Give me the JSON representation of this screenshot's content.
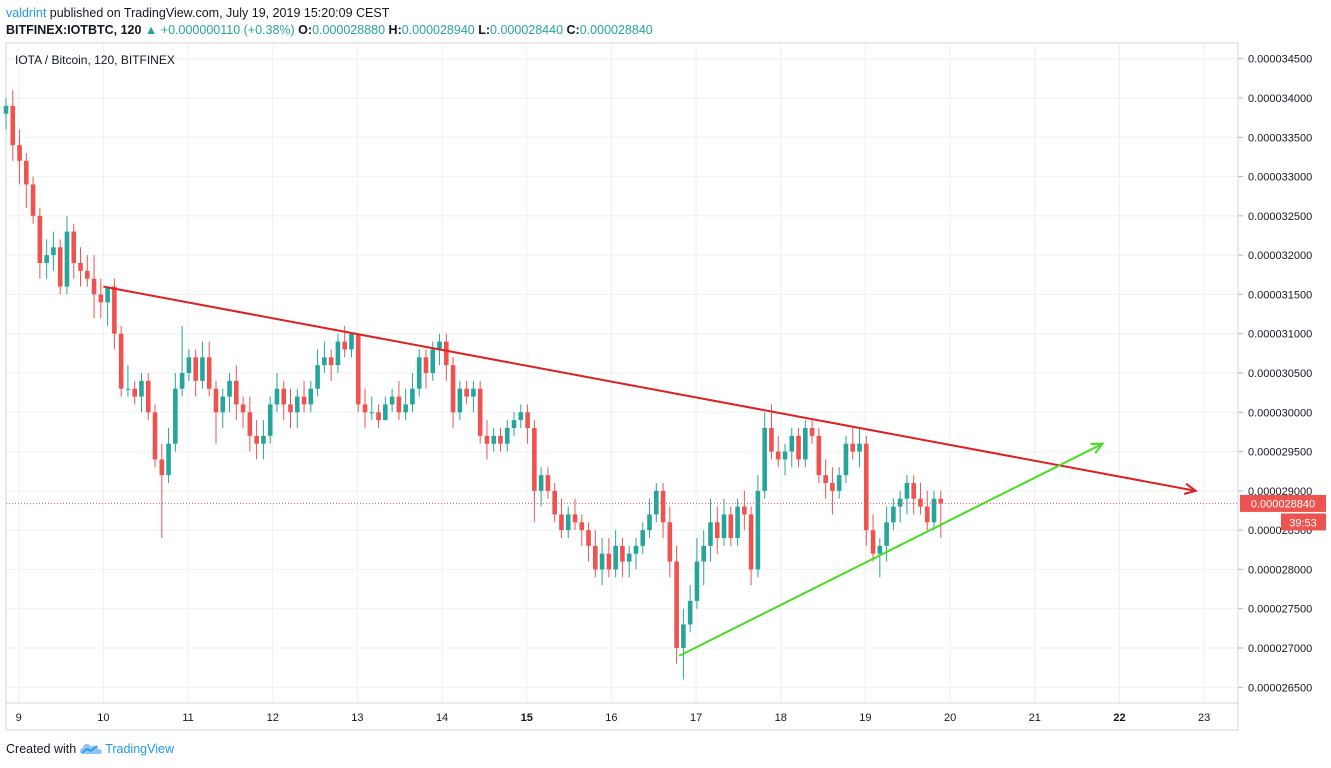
{
  "header": {
    "author": "valdrint",
    "published": " published on TradingView.com, July 19, 2019 15:20:09 CEST",
    "symbol_line": "BITFINEX:IOTBTC, 120",
    "change": "+0.000000110 (+0.38%)",
    "o_label": "O:",
    "o_value": "0.000028880",
    "h_label": "H:",
    "h_value": "0.000028940",
    "l_label": "L:",
    "l_value": "0.000028440",
    "c_label": "C:",
    "c_value": "0.000028840"
  },
  "legend": {
    "title": "IOTA / Bitcoin, 120, BITFINEX"
  },
  "footer": {
    "created_with": "Created with",
    "brand": "TradingView"
  },
  "price_label": {
    "value": "0.000028840",
    "countdown": "39:53"
  },
  "colors": {
    "up": "#26a69a",
    "down": "#ef5350",
    "resistance": "#e02020",
    "support": "#44dd22",
    "grid": "#eef0f3"
  },
  "chart_data": {
    "type": "candlestick",
    "title": "IOTA / Bitcoin, 120, BITFINEX",
    "x_ticks": [
      {
        "label": "9",
        "day": 9,
        "bold": false
      },
      {
        "label": "10",
        "day": 10,
        "bold": false
      },
      {
        "label": "11",
        "day": 11,
        "bold": false
      },
      {
        "label": "12",
        "day": 12,
        "bold": false
      },
      {
        "label": "13",
        "day": 13,
        "bold": false
      },
      {
        "label": "14",
        "day": 14,
        "bold": false
      },
      {
        "label": "15",
        "day": 15,
        "bold": true
      },
      {
        "label": "16",
        "day": 16,
        "bold": false
      },
      {
        "label": "17",
        "day": 17,
        "bold": false
      },
      {
        "label": "18",
        "day": 18,
        "bold": false
      },
      {
        "label": "19",
        "day": 19,
        "bold": false
      },
      {
        "label": "20",
        "day": 20,
        "bold": false
      },
      {
        "label": "21",
        "day": 21,
        "bold": false
      },
      {
        "label": "22",
        "day": 22,
        "bold": true
      },
      {
        "label": "23",
        "day": 23,
        "bold": false
      }
    ],
    "x_range_days": [
      8.85,
      23.4
    ],
    "y_range": [
      2.63e-05,
      3.47e-05
    ],
    "y_ticks": [
      "0.000034500",
      "0.000034000",
      "0.000033500",
      "0.000033000",
      "0.000032500",
      "0.000032000",
      "0.000031500",
      "0.000031000",
      "0.000030500",
      "0.000030000",
      "0.000029500",
      "0.000029000",
      "0.000028500",
      "0.000028000",
      "0.000027500",
      "0.000027000",
      "0.000026500"
    ],
    "last_price": 2.884e-05,
    "trendlines": [
      {
        "name": "resistance",
        "color": "#e02020",
        "from": {
          "day": 10.0,
          "price": 3.16e-05
        },
        "to": {
          "day": 22.9,
          "price": 2.9e-05
        },
        "arrow": true
      },
      {
        "name": "support",
        "color": "#44dd22",
        "from": {
          "day": 16.8,
          "price": 2.69e-05
        },
        "to": {
          "day": 21.8,
          "price": 2.96e-05
        },
        "arrow": true
      }
    ],
    "candles": [
      [
        8.85,
        33.8,
        34.0,
        33.6,
        33.9
      ],
      [
        8.93,
        33.9,
        34.1,
        33.2,
        33.4
      ],
      [
        9.01,
        33.4,
        33.6,
        32.9,
        33.2
      ],
      [
        9.09,
        33.2,
        33.3,
        32.6,
        32.9
      ],
      [
        9.17,
        32.9,
        33.0,
        32.4,
        32.5
      ],
      [
        9.25,
        32.5,
        32.6,
        31.7,
        31.9
      ],
      [
        9.33,
        31.9,
        32.2,
        31.7,
        32.0
      ],
      [
        9.41,
        32.0,
        32.3,
        31.8,
        32.1
      ],
      [
        9.49,
        32.1,
        32.2,
        31.5,
        31.6
      ],
      [
        9.57,
        31.6,
        32.5,
        31.5,
        32.3
      ],
      [
        9.65,
        32.3,
        32.4,
        31.7,
        31.9
      ],
      [
        9.73,
        31.9,
        32.1,
        31.6,
        31.8
      ],
      [
        9.81,
        31.8,
        32.0,
        31.6,
        31.7
      ],
      [
        9.89,
        31.7,
        32.0,
        31.2,
        31.5
      ],
      [
        9.97,
        31.5,
        31.7,
        31.2,
        31.4
      ],
      [
        10.05,
        31.4,
        31.6,
        31.1,
        31.6
      ],
      [
        10.13,
        31.6,
        31.7,
        30.8,
        31.0
      ],
      [
        10.21,
        31.0,
        31.1,
        30.2,
        30.3
      ],
      [
        10.29,
        30.3,
        30.6,
        30.2,
        30.3
      ],
      [
        10.37,
        30.3,
        30.4,
        30.1,
        30.2
      ],
      [
        10.45,
        30.2,
        30.5,
        30.0,
        30.4
      ],
      [
        10.53,
        30.4,
        30.5,
        29.9,
        30.0
      ],
      [
        10.61,
        30.0,
        30.1,
        29.3,
        29.4
      ],
      [
        10.69,
        29.4,
        29.6,
        28.4,
        29.2
      ],
      [
        10.77,
        29.2,
        29.8,
        29.1,
        29.6
      ],
      [
        10.85,
        29.6,
        30.5,
        29.5,
        30.3
      ],
      [
        10.93,
        30.3,
        31.1,
        30.2,
        30.5
      ],
      [
        11.01,
        30.5,
        30.8,
        30.4,
        30.7
      ],
      [
        11.09,
        30.7,
        30.8,
        30.2,
        30.4
      ],
      [
        11.17,
        30.4,
        30.9,
        30.3,
        30.7
      ],
      [
        11.25,
        30.7,
        30.9,
        30.2,
        30.3
      ],
      [
        11.33,
        30.3,
        30.4,
        29.6,
        30.0
      ],
      [
        11.41,
        30.0,
        30.3,
        29.8,
        30.2
      ],
      [
        11.49,
        30.2,
        30.5,
        30.0,
        30.4
      ],
      [
        11.57,
        30.4,
        30.6,
        29.9,
        30.1
      ],
      [
        11.65,
        30.1,
        30.2,
        29.8,
        30.0
      ],
      [
        11.73,
        30.0,
        30.2,
        29.5,
        29.7
      ],
      [
        11.81,
        29.7,
        29.9,
        29.4,
        29.6
      ],
      [
        11.89,
        29.6,
        29.9,
        29.4,
        29.7
      ],
      [
        11.97,
        29.7,
        30.2,
        29.6,
        30.1
      ],
      [
        12.05,
        30.1,
        30.5,
        30.0,
        30.3
      ],
      [
        12.13,
        30.3,
        30.4,
        29.9,
        30.1
      ],
      [
        12.21,
        30.1,
        30.3,
        29.8,
        30.0
      ],
      [
        12.29,
        30.0,
        30.3,
        29.8,
        30.2
      ],
      [
        12.37,
        30.2,
        30.4,
        30.0,
        30.1
      ],
      [
        12.45,
        30.1,
        30.4,
        30.0,
        30.3
      ],
      [
        12.53,
        30.3,
        30.8,
        30.2,
        30.6
      ],
      [
        12.61,
        30.6,
        30.9,
        30.5,
        30.7
      ],
      [
        12.69,
        30.7,
        30.8,
        30.4,
        30.6
      ],
      [
        12.77,
        30.6,
        31.0,
        30.5,
        30.9
      ],
      [
        12.85,
        30.9,
        31.1,
        30.7,
        30.8
      ],
      [
        12.93,
        30.8,
        31.0,
        30.7,
        31.0
      ],
      [
        13.01,
        31.0,
        31.0,
        30.0,
        30.1
      ],
      [
        13.09,
        30.1,
        30.3,
        29.8,
        30.0
      ],
      [
        13.17,
        30.0,
        30.2,
        29.9,
        30.0
      ],
      [
        13.25,
        30.0,
        30.1,
        29.8,
        29.9
      ],
      [
        13.33,
        29.9,
        30.2,
        29.9,
        30.1
      ],
      [
        13.41,
        30.1,
        30.3,
        30.0,
        30.2
      ],
      [
        13.49,
        30.2,
        30.4,
        29.9,
        30.0
      ],
      [
        13.57,
        30.0,
        30.3,
        29.9,
        30.1
      ],
      [
        13.65,
        30.1,
        30.5,
        30.0,
        30.3
      ],
      [
        13.73,
        30.3,
        30.8,
        30.2,
        30.7
      ],
      [
        13.81,
        30.7,
        30.8,
        30.3,
        30.5
      ],
      [
        13.89,
        30.5,
        30.9,
        30.4,
        30.8
      ],
      [
        13.97,
        30.8,
        31.0,
        30.6,
        30.9
      ],
      [
        14.05,
        30.9,
        31.0,
        30.4,
        30.6
      ],
      [
        14.13,
        30.6,
        30.7,
        29.8,
        30.0
      ],
      [
        14.21,
        30.0,
        30.4,
        29.9,
        30.3
      ],
      [
        14.29,
        30.3,
        30.4,
        30.1,
        30.2
      ],
      [
        14.37,
        30.2,
        30.4,
        30.0,
        30.3
      ],
      [
        14.45,
        30.3,
        30.4,
        29.6,
        29.7
      ],
      [
        14.53,
        29.7,
        29.9,
        29.4,
        29.6
      ],
      [
        14.61,
        29.6,
        29.8,
        29.5,
        29.7
      ],
      [
        14.69,
        29.7,
        29.8,
        29.5,
        29.6
      ],
      [
        14.77,
        29.6,
        29.9,
        29.5,
        29.8
      ],
      [
        14.85,
        29.8,
        30.0,
        29.7,
        29.9
      ],
      [
        14.93,
        29.9,
        30.1,
        29.8,
        30.0
      ],
      [
        15.01,
        30.0,
        30.1,
        29.6,
        29.8
      ],
      [
        15.09,
        29.8,
        29.9,
        28.6,
        29.0
      ],
      [
        15.17,
        29.0,
        29.3,
        28.8,
        29.2
      ],
      [
        15.25,
        29.2,
        29.3,
        28.9,
        29.0
      ],
      [
        15.33,
        29.0,
        29.1,
        28.6,
        28.7
      ],
      [
        15.41,
        28.7,
        28.9,
        28.4,
        28.5
      ],
      [
        15.49,
        28.5,
        28.8,
        28.4,
        28.7
      ],
      [
        15.57,
        28.7,
        28.9,
        28.5,
        28.6
      ],
      [
        15.65,
        28.6,
        28.7,
        28.3,
        28.5
      ],
      [
        15.73,
        28.5,
        28.6,
        28.1,
        28.3
      ],
      [
        15.81,
        28.3,
        28.5,
        27.9,
        28.0
      ],
      [
        15.89,
        28.0,
        28.4,
        27.8,
        28.2
      ],
      [
        15.97,
        28.2,
        28.4,
        27.9,
        28.0
      ],
      [
        16.05,
        28.0,
        28.5,
        27.9,
        28.3
      ],
      [
        16.13,
        28.3,
        28.4,
        27.9,
        28.1
      ],
      [
        16.21,
        28.1,
        28.3,
        27.9,
        28.2
      ],
      [
        16.29,
        28.2,
        28.4,
        28.0,
        28.3
      ],
      [
        16.37,
        28.3,
        28.6,
        28.2,
        28.5
      ],
      [
        16.45,
        28.5,
        28.9,
        28.4,
        28.7
      ],
      [
        16.53,
        28.7,
        29.1,
        28.6,
        29.0
      ],
      [
        16.61,
        29.0,
        29.1,
        28.4,
        28.6
      ],
      [
        16.69,
        28.6,
        28.8,
        27.9,
        28.1
      ],
      [
        16.77,
        28.1,
        28.3,
        26.8,
        27.0
      ],
      [
        16.85,
        27.0,
        27.5,
        26.6,
        27.3
      ],
      [
        16.93,
        27.3,
        27.8,
        27.2,
        27.6
      ],
      [
        17.01,
        27.6,
        28.4,
        27.5,
        28.1
      ],
      [
        17.09,
        28.1,
        28.5,
        27.8,
        28.3
      ],
      [
        17.17,
        28.3,
        28.9,
        28.1,
        28.6
      ],
      [
        17.25,
        28.6,
        28.8,
        28.2,
        28.4
      ],
      [
        17.33,
        28.4,
        28.9,
        28.3,
        28.7
      ],
      [
        17.41,
        28.7,
        28.8,
        28.3,
        28.4
      ],
      [
        17.49,
        28.4,
        28.9,
        28.3,
        28.8
      ],
      [
        17.57,
        28.8,
        29.0,
        28.5,
        28.7
      ],
      [
        17.65,
        28.7,
        28.8,
        27.8,
        28.0
      ],
      [
        17.73,
        28.0,
        29.2,
        27.9,
        29.0
      ],
      [
        17.81,
        29.0,
        30.0,
        28.9,
        29.8
      ],
      [
        17.89,
        29.8,
        30.1,
        29.4,
        29.5
      ],
      [
        17.97,
        29.5,
        29.7,
        29.3,
        29.4
      ],
      [
        18.05,
        29.4,
        29.6,
        29.2,
        29.5
      ],
      [
        18.13,
        29.5,
        29.8,
        29.3,
        29.7
      ],
      [
        18.21,
        29.7,
        29.8,
        29.3,
        29.4
      ],
      [
        18.29,
        29.4,
        29.9,
        29.3,
        29.8
      ],
      [
        18.37,
        29.8,
        29.9,
        29.6,
        29.7
      ],
      [
        18.45,
        29.7,
        29.8,
        29.1,
        29.2
      ],
      [
        18.53,
        29.2,
        29.4,
        28.9,
        29.1
      ],
      [
        18.61,
        29.1,
        29.3,
        28.7,
        29.0
      ],
      [
        18.69,
        29.0,
        29.3,
        28.9,
        29.2
      ],
      [
        18.77,
        29.2,
        29.7,
        29.1,
        29.6
      ],
      [
        18.85,
        29.6,
        29.8,
        29.4,
        29.5
      ],
      [
        18.93,
        29.5,
        29.8,
        29.3,
        29.6
      ],
      [
        19.01,
        29.6,
        29.7,
        28.3,
        28.5
      ],
      [
        19.09,
        28.5,
        28.7,
        28.1,
        28.2
      ],
      [
        19.17,
        28.2,
        28.4,
        27.9,
        28.3
      ],
      [
        19.25,
        28.3,
        28.8,
        28.1,
        28.6
      ],
      [
        19.33,
        28.6,
        28.9,
        28.5,
        28.8
      ],
      [
        19.41,
        28.8,
        29.0,
        28.6,
        28.9
      ],
      [
        19.49,
        28.9,
        29.2,
        28.7,
        29.1
      ],
      [
        19.57,
        29.1,
        29.2,
        28.7,
        28.9
      ],
      [
        19.65,
        28.9,
        29.1,
        28.7,
        28.8
      ],
      [
        19.73,
        28.8,
        29.0,
        28.5,
        28.6
      ],
      [
        19.81,
        28.6,
        29.0,
        28.5,
        28.9
      ],
      [
        19.89,
        28.9,
        29.0,
        28.4,
        28.84
      ]
    ]
  }
}
